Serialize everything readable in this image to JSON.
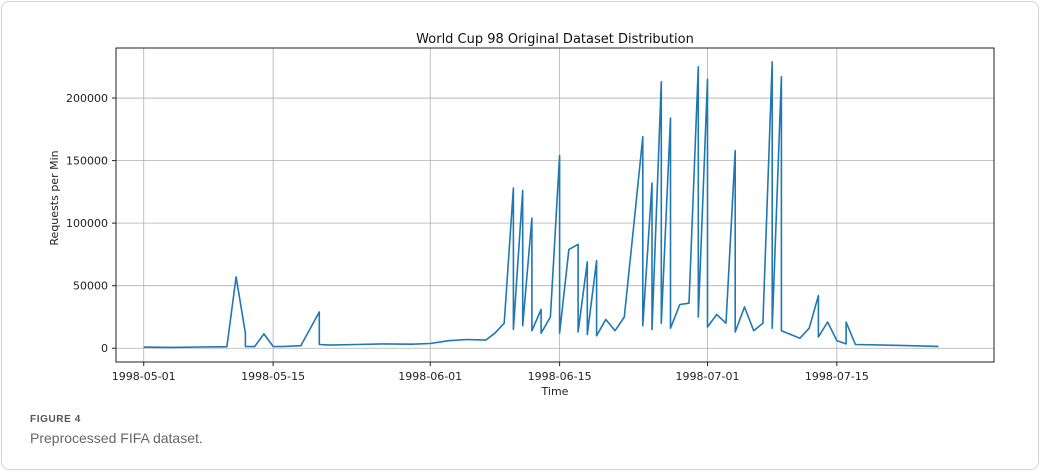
{
  "figure": {
    "label": "FIGURE 4",
    "caption": "Preprocessed FIFA dataset."
  },
  "chart_data": {
    "type": "line",
    "title": "World Cup 98 Original Dataset Distribution",
    "xlabel": "Time",
    "ylabel": "Requests per Min",
    "x_range": [
      "1998-04-28",
      "1998-08-01"
    ],
    "ylim": [
      -11000,
      240000
    ],
    "x_ticks": [
      "1998-05-01",
      "1998-05-15",
      "1998-06-01",
      "1998-06-15",
      "1998-07-01",
      "1998-07-15"
    ],
    "y_ticks": [
      0,
      50000,
      100000,
      150000,
      200000
    ],
    "y_tick_labels": [
      "0",
      "50000",
      "100000",
      "150000",
      "200000"
    ],
    "grid": true,
    "line_color": "#1f77b4",
    "series": [
      {
        "x": [
          "1998-05-01",
          "1998-05-04",
          "1998-05-07",
          "1998-05-10",
          "1998-05-11",
          "1998-05-12",
          "1998-05-12",
          "1998-05-13",
          "1998-05-14",
          "1998-05-15",
          "1998-05-16",
          "1998-05-18",
          "1998-05-20",
          "1998-05-20",
          "1998-05-21",
          "1998-05-24",
          "1998-05-27",
          "1998-05-30",
          "1998-06-01",
          "1998-06-03",
          "1998-06-05",
          "1998-06-07",
          "1998-06-08",
          "1998-06-09",
          "1998-06-10",
          "1998-06-10",
          "1998-06-11",
          "1998-06-11",
          "1998-06-12",
          "1998-06-12",
          "1998-06-13",
          "1998-06-13",
          "1998-06-14",
          "1998-06-15",
          "1998-06-15",
          "1998-06-16",
          "1998-06-17",
          "1998-06-17",
          "1998-06-18",
          "1998-06-18",
          "1998-06-19",
          "1998-06-19",
          "1998-06-20",
          "1998-06-21",
          "1998-06-22",
          "1998-06-23",
          "1998-06-24",
          "1998-06-24",
          "1998-06-25",
          "1998-06-25",
          "1998-06-26",
          "1998-06-26",
          "1998-06-27",
          "1998-06-27",
          "1998-06-28",
          "1998-06-29",
          "1998-06-30",
          "1998-06-30",
          "1998-07-01",
          "1998-07-01",
          "1998-07-02",
          "1998-07-03",
          "1998-07-04",
          "1998-07-04",
          "1998-07-05",
          "1998-07-06",
          "1998-07-07",
          "1998-07-08",
          "1998-07-08",
          "1998-07-09",
          "1998-07-09",
          "1998-07-10",
          "1998-07-11",
          "1998-07-12",
          "1998-07-13",
          "1998-07-13",
          "1998-07-14",
          "1998-07-15",
          "1998-07-16",
          "1998-07-16",
          "1998-07-17",
          "1998-07-20",
          "1998-07-23",
          "1998-07-26"
        ],
        "y": [
          900,
          700,
          1000,
          1200,
          57000,
          12000,
          1500,
          1300,
          11500,
          1500,
          1400,
          2000,
          29000,
          3000,
          2500,
          3000,
          3500,
          3200,
          3800,
          6000,
          7000,
          6500,
          12000,
          20000,
          128000,
          15000,
          126000,
          18000,
          104000,
          14000,
          31000,
          12000,
          25000,
          154000,
          12000,
          79000,
          83000,
          13000,
          69000,
          11000,
          70000,
          10000,
          23000,
          14000,
          25000,
          97000,
          169000,
          18000,
          132000,
          15000,
          213000,
          20000,
          184000,
          16000,
          35000,
          36000,
          225000,
          25000,
          215000,
          17000,
          27000,
          20000,
          158000,
          13000,
          33000,
          14000,
          20000,
          229000,
          16000,
          217000,
          14000,
          11000,
          8000,
          16000,
          42000,
          9000,
          21000,
          6000,
          3500,
          21000,
          3000,
          2500,
          2000,
          1500
        ]
      }
    ]
  }
}
